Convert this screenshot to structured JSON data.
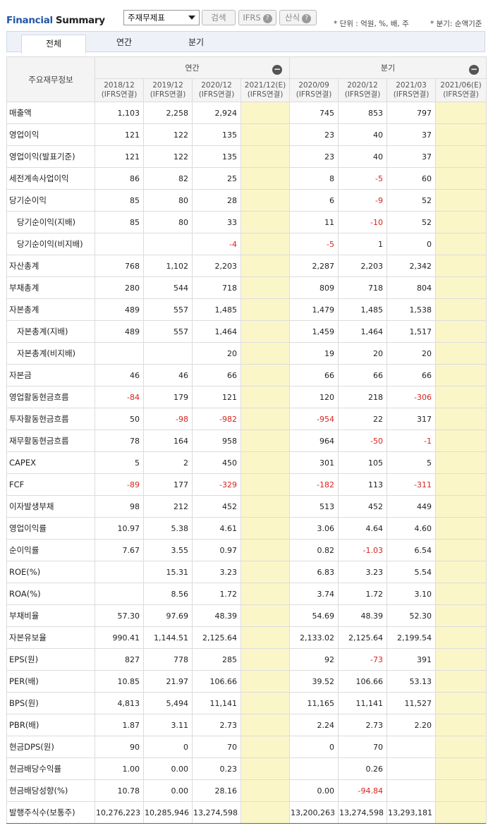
{
  "header": {
    "title_part1": "Financial",
    "title_part2": "Summary",
    "select_value": "주재무제표",
    "search_label": "검색",
    "ifrs_label": "IFRS",
    "formula_label": "산식",
    "help_glyph": "?",
    "unit_note": "* 단위 : 억원, %, 배, 주",
    "quarter_note": "* 분기: 순액기준"
  },
  "tabs": [
    {
      "label": "전체",
      "active": true
    },
    {
      "label": "연간",
      "active": false
    },
    {
      "label": "분기",
      "active": false
    }
  ],
  "table": {
    "corner_label": "주요재무정보",
    "annual_group": "연간",
    "quarter_group": "분기",
    "collapse_glyph": "−",
    "columns": [
      {
        "period": "2018/12",
        "basis": "(IFRS연결)",
        "estimate": false
      },
      {
        "period": "2019/12",
        "basis": "(IFRS연결)",
        "estimate": false
      },
      {
        "period": "2020/12",
        "basis": "(IFRS연결)",
        "estimate": false
      },
      {
        "period": "2021/12(E)",
        "basis": "(IFRS연결)",
        "estimate": true
      },
      {
        "period": "2020/09",
        "basis": "(IFRS연결)",
        "estimate": false
      },
      {
        "period": "2020/12",
        "basis": "(IFRS연결)",
        "estimate": false
      },
      {
        "period": "2021/03",
        "basis": "(IFRS연결)",
        "estimate": false
      },
      {
        "period": "2021/06(E)",
        "basis": "(IFRS연결)",
        "estimate": true
      }
    ],
    "rows": [
      {
        "label": "매출액",
        "sub": false,
        "values": [
          "1,103",
          "2,258",
          "2,924",
          "",
          "745",
          "853",
          "797",
          ""
        ]
      },
      {
        "label": "영업이익",
        "sub": false,
        "values": [
          "121",
          "122",
          "135",
          "",
          "23",
          "40",
          "37",
          ""
        ]
      },
      {
        "label": "영업이익(발표기준)",
        "sub": false,
        "values": [
          "121",
          "122",
          "135",
          "",
          "23",
          "40",
          "37",
          ""
        ]
      },
      {
        "label": "세전계속사업이익",
        "sub": false,
        "values": [
          "86",
          "82",
          "25",
          "",
          "8",
          "-5",
          "60",
          ""
        ]
      },
      {
        "label": "당기순이익",
        "sub": false,
        "values": [
          "85",
          "80",
          "28",
          "",
          "6",
          "-9",
          "52",
          ""
        ]
      },
      {
        "label": "당기순이익(지배)",
        "sub": true,
        "values": [
          "85",
          "80",
          "33",
          "",
          "11",
          "-10",
          "52",
          ""
        ]
      },
      {
        "label": "당기순이익(비지배)",
        "sub": true,
        "values": [
          "",
          "",
          "-4",
          "",
          "-5",
          "1",
          "0",
          ""
        ]
      },
      {
        "label": "자산총계",
        "sub": false,
        "values": [
          "768",
          "1,102",
          "2,203",
          "",
          "2,287",
          "2,203",
          "2,342",
          ""
        ]
      },
      {
        "label": "부채총계",
        "sub": false,
        "values": [
          "280",
          "544",
          "718",
          "",
          "809",
          "718",
          "804",
          ""
        ]
      },
      {
        "label": "자본총계",
        "sub": false,
        "values": [
          "489",
          "557",
          "1,485",
          "",
          "1,479",
          "1,485",
          "1,538",
          ""
        ]
      },
      {
        "label": "자본총계(지배)",
        "sub": true,
        "values": [
          "489",
          "557",
          "1,464",
          "",
          "1,459",
          "1,464",
          "1,517",
          ""
        ]
      },
      {
        "label": "자본총계(비지배)",
        "sub": true,
        "values": [
          "",
          "",
          "20",
          "",
          "19",
          "20",
          "20",
          ""
        ]
      },
      {
        "label": "자본금",
        "sub": false,
        "values": [
          "46",
          "46",
          "66",
          "",
          "66",
          "66",
          "66",
          ""
        ]
      },
      {
        "label": "영업활동현금흐름",
        "sub": false,
        "values": [
          "-84",
          "179",
          "121",
          "",
          "120",
          "218",
          "-306",
          ""
        ]
      },
      {
        "label": "투자활동현금흐름",
        "sub": false,
        "values": [
          "50",
          "-98",
          "-982",
          "",
          "-954",
          "22",
          "317",
          ""
        ]
      },
      {
        "label": "재무활동현금흐름",
        "sub": false,
        "values": [
          "78",
          "164",
          "958",
          "",
          "964",
          "-50",
          "-1",
          ""
        ]
      },
      {
        "label": "CAPEX",
        "sub": false,
        "values": [
          "5",
          "2",
          "450",
          "",
          "301",
          "105",
          "5",
          ""
        ]
      },
      {
        "label": "FCF",
        "sub": false,
        "values": [
          "-89",
          "177",
          "-329",
          "",
          "-182",
          "113",
          "-311",
          ""
        ]
      },
      {
        "label": "이자발생부채",
        "sub": false,
        "values": [
          "98",
          "212",
          "452",
          "",
          "513",
          "452",
          "449",
          ""
        ]
      },
      {
        "label": "영업이익률",
        "sub": false,
        "values": [
          "10.97",
          "5.38",
          "4.61",
          "",
          "3.06",
          "4.64",
          "4.60",
          ""
        ]
      },
      {
        "label": "순이익률",
        "sub": false,
        "values": [
          "7.67",
          "3.55",
          "0.97",
          "",
          "0.82",
          "-1.03",
          "6.54",
          ""
        ]
      },
      {
        "label": "ROE(%)",
        "sub": false,
        "values": [
          "",
          "15.31",
          "3.23",
          "",
          "6.83",
          "3.23",
          "5.54",
          ""
        ]
      },
      {
        "label": "ROA(%)",
        "sub": false,
        "values": [
          "",
          "8.56",
          "1.72",
          "",
          "3.74",
          "1.72",
          "3.10",
          ""
        ]
      },
      {
        "label": "부채비율",
        "sub": false,
        "values": [
          "57.30",
          "97.69",
          "48.39",
          "",
          "54.69",
          "48.39",
          "52.30",
          ""
        ]
      },
      {
        "label": "자본유보율",
        "sub": false,
        "values": [
          "990.41",
          "1,144.51",
          "2,125.64",
          "",
          "2,133.02",
          "2,125.64",
          "2,199.54",
          ""
        ]
      },
      {
        "label": "EPS(원)",
        "sub": false,
        "values": [
          "827",
          "778",
          "285",
          "",
          "92",
          "-73",
          "391",
          ""
        ]
      },
      {
        "label": "PER(배)",
        "sub": false,
        "values": [
          "10.85",
          "21.97",
          "106.66",
          "",
          "39.52",
          "106.66",
          "53.13",
          ""
        ]
      },
      {
        "label": "BPS(원)",
        "sub": false,
        "values": [
          "4,813",
          "5,494",
          "11,141",
          "",
          "11,165",
          "11,141",
          "11,527",
          ""
        ]
      },
      {
        "label": "PBR(배)",
        "sub": false,
        "values": [
          "1.87",
          "3.11",
          "2.73",
          "",
          "2.24",
          "2.73",
          "2.20",
          ""
        ]
      },
      {
        "label": "현금DPS(원)",
        "sub": false,
        "values": [
          "90",
          "0",
          "70",
          "",
          "0",
          "70",
          "",
          ""
        ]
      },
      {
        "label": "현금배당수익률",
        "sub": false,
        "values": [
          "1.00",
          "0.00",
          "0.23",
          "",
          "",
          "0.26",
          "",
          ""
        ]
      },
      {
        "label": "현금배당성향(%)",
        "sub": false,
        "values": [
          "10.78",
          "0.00",
          "28.16",
          "",
          "0.00",
          "-94.84",
          "",
          ""
        ]
      },
      {
        "label": "발행주식수(보통주)",
        "sub": false,
        "values": [
          "10,276,223",
          "10,285,946",
          "13,274,598",
          "",
          "13,200,263",
          "13,274,598",
          "13,293,181",
          ""
        ]
      }
    ]
  }
}
